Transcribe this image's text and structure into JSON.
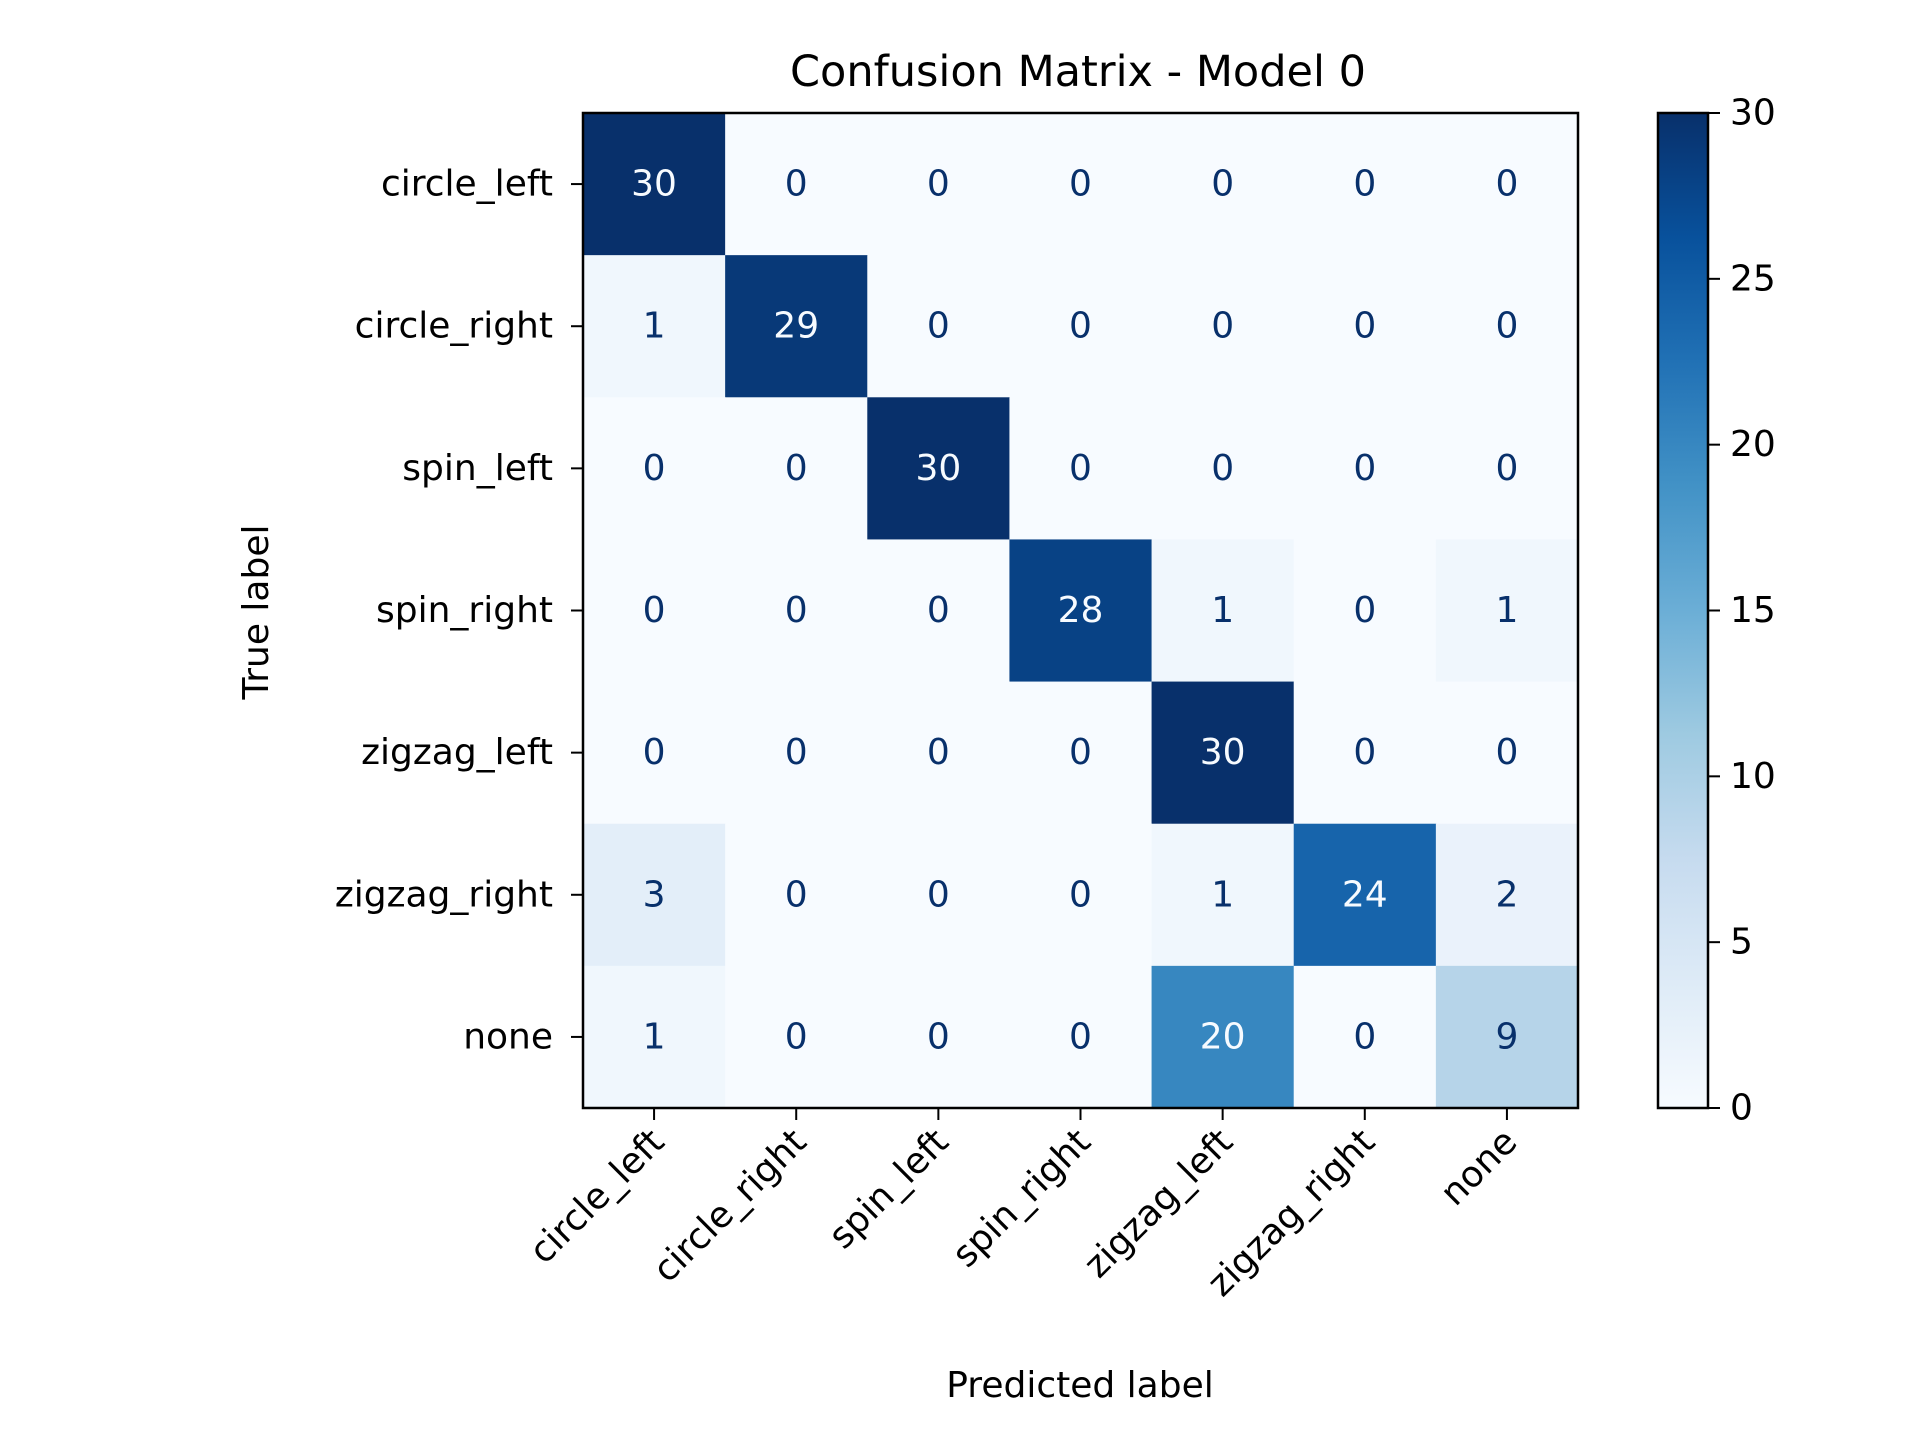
{
  "chart_data": {
    "type": "heatmap",
    "title": "Confusion Matrix - Model 0",
    "xlabel": "Predicted label",
    "ylabel": "True label",
    "x_categories": [
      "circle_left",
      "circle_right",
      "spin_left",
      "spin_right",
      "zigzag_left",
      "zigzag_right",
      "none"
    ],
    "y_categories": [
      "circle_left",
      "circle_right",
      "spin_left",
      "spin_right",
      "zigzag_left",
      "zigzag_right",
      "none"
    ],
    "matrix": [
      [
        30,
        0,
        0,
        0,
        0,
        0,
        0
      ],
      [
        1,
        29,
        0,
        0,
        0,
        0,
        0
      ],
      [
        0,
        0,
        30,
        0,
        0,
        0,
        0
      ],
      [
        0,
        0,
        0,
        28,
        1,
        0,
        1
      ],
      [
        0,
        0,
        0,
        0,
        30,
        0,
        0
      ],
      [
        3,
        0,
        0,
        0,
        1,
        24,
        2
      ],
      [
        1,
        0,
        0,
        0,
        20,
        0,
        9
      ]
    ],
    "colormap": "Blues",
    "colorbar": {
      "range": [
        0,
        30
      ],
      "ticks": [
        0,
        5,
        10,
        15,
        20,
        25,
        30
      ]
    },
    "grid": false
  }
}
